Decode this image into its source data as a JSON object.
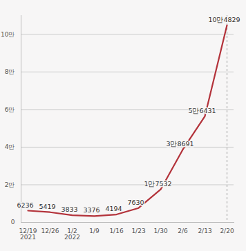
{
  "chart_data": {
    "type": "line",
    "categories": [
      "12/19\n2021",
      "12/26",
      "1/2\n2022",
      "1/9",
      "1/16",
      "1/23",
      "1/30",
      "2/6",
      "2/13",
      "2/20"
    ],
    "values": [
      6236,
      5419,
      3833,
      3376,
      4194,
      7630,
      17532,
      38691,
      56431,
      104829
    ],
    "value_labels": [
      "6236",
      "5419",
      "3833",
      "3376",
      "4194",
      "7630",
      "1만7532",
      "3만8691",
      "5만6431",
      "10만4829"
    ],
    "color": "#b3323a",
    "ylim": [
      0,
      110000
    ],
    "yticks": [
      0,
      {
        "value": 20000,
        "label": "2만"
      },
      {
        "value": 40000,
        "label": "4만"
      },
      {
        "value": 60000,
        "label": "6만"
      },
      {
        "value": 80000,
        "label": "8만"
      },
      {
        "value": 100000,
        "label": "10만"
      }
    ],
    "grid": true,
    "data_labels": true
  }
}
